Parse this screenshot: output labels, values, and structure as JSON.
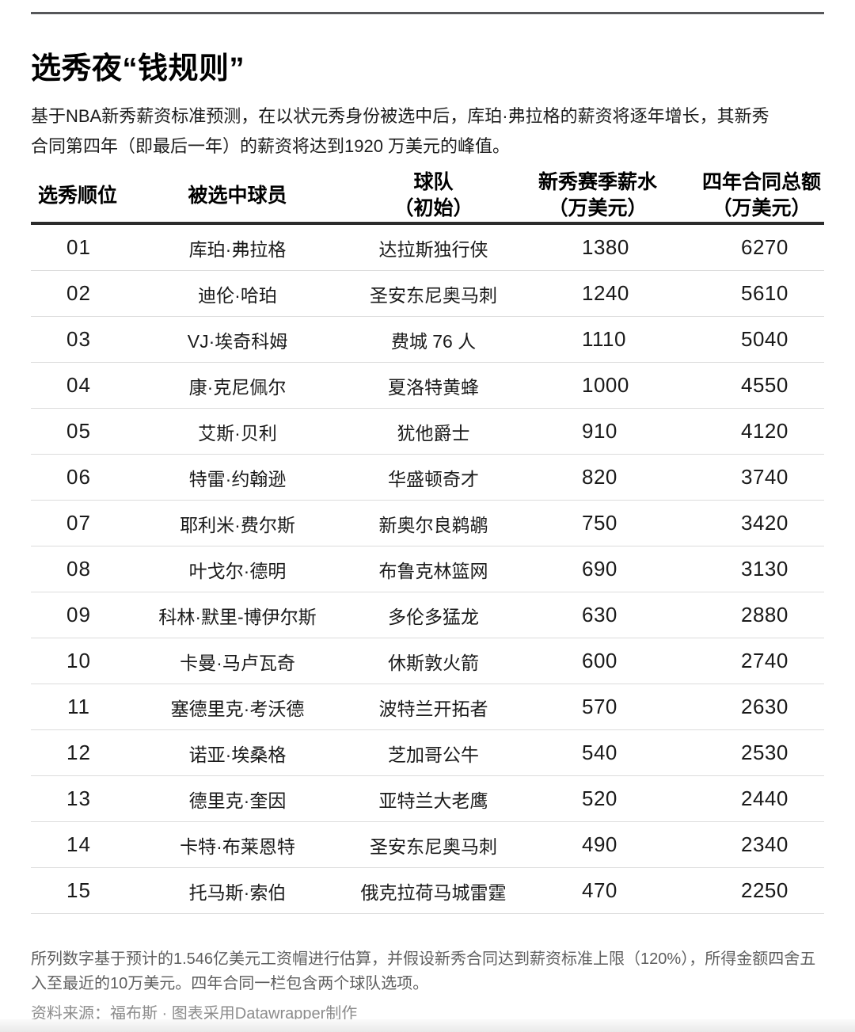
{
  "chart": {
    "title": "选秀夜“钱规则”",
    "description_lines": [
      "基于NBA新秀薪资标准预测，在以状元秀身份被选中后，库珀·弗拉格的薪资将逐年增长，其新秀",
      "合同第四年（即最后一年）的薪资将达到1920 万美元的峰值。"
    ],
    "note_lines": [
      "所列数字基于预计的1.546亿美元工资帽进行估算，并假设新秀合同达到薪资标准上限（120%），所得金额四舍五",
      "入至最近的10万美元。四年合同一栏包含两个球队选项。"
    ],
    "source": "资料来源：福布斯 · 图表采用Datawrapper制作"
  },
  "table": {
    "headers": [
      {
        "line1": "选秀顺位",
        "line2": ""
      },
      {
        "line1": "被选中球员",
        "line2": ""
      },
      {
        "line1": "球队",
        "line2": "（初始）"
      },
      {
        "line1": "新秀赛季薪水",
        "line2": "（万美元）"
      },
      {
        "line1": "四年合同总额",
        "line2": "（万美元）"
      }
    ],
    "rows": [
      {
        "pick": "01",
        "player": "库珀·弗拉格",
        "team": "达拉斯独行侠",
        "salary": "1380",
        "total": "6270"
      },
      {
        "pick": "02",
        "player": "迪伦·哈珀",
        "team": "圣安东尼奥马刺",
        "salary": "1240",
        "total": "5610"
      },
      {
        "pick": "03",
        "player": "VJ·埃奇科姆",
        "team": "费城 76 人",
        "salary": "1110",
        "total": "5040"
      },
      {
        "pick": "04",
        "player": "康·克尼佩尔",
        "team": "夏洛特黄蜂",
        "salary": "1000",
        "total": "4550"
      },
      {
        "pick": "05",
        "player": "艾斯·贝利",
        "team": "犹他爵士",
        "salary": "910",
        "total": "4120"
      },
      {
        "pick": "06",
        "player": "特雷·约翰逊",
        "team": "华盛顿奇才",
        "salary": "820",
        "total": "3740"
      },
      {
        "pick": "07",
        "player": "耶利米·费尔斯",
        "team": "新奥尔良鹈鹕",
        "salary": "750",
        "total": "3420"
      },
      {
        "pick": "08",
        "player": "叶戈尔·德明",
        "team": "布鲁克林篮网",
        "salary": "690",
        "total": "3130"
      },
      {
        "pick": "09",
        "player": "科林·默里-博伊尔斯",
        "team": "多伦多猛龙",
        "salary": "630",
        "total": "2880"
      },
      {
        "pick": "10",
        "player": "卡曼·马卢瓦奇",
        "team": "休斯敦火箭",
        "salary": "600",
        "total": "2740"
      },
      {
        "pick": "11",
        "player": "塞德里克·考沃德",
        "team": "波特兰开拓者",
        "salary": "570",
        "total": "2630"
      },
      {
        "pick": "12",
        "player": "诺亚·埃桑格",
        "team": "芝加哥公牛",
        "salary": "540",
        "total": "2530"
      },
      {
        "pick": "13",
        "player": "德里克·奎因",
        "team": "亚特兰大老鹰",
        "salary": "520",
        "total": "2440"
      },
      {
        "pick": "14",
        "player": "卡特·布莱恩特",
        "team": "圣安东尼奥马刺",
        "salary": "490",
        "total": "2340"
      },
      {
        "pick": "15",
        "player": "托马斯·索伯",
        "team": "俄克拉荷马城雷霆",
        "salary": "470",
        "total": "2250"
      }
    ]
  },
  "chart_data": {
    "type": "table",
    "title": "选秀夜“钱规则”",
    "columns": [
      "选秀顺位",
      "被选中球员",
      "球队（初始）",
      "新秀赛季薪水（万美元）",
      "四年合同总额（万美元）"
    ],
    "rows": [
      [
        "01",
        "库珀·弗拉格",
        "达拉斯独行侠",
        1380,
        6270
      ],
      [
        "02",
        "迪伦·哈珀",
        "圣安东尼奥马刺",
        1240,
        5610
      ],
      [
        "03",
        "VJ·埃奇科姆",
        "费城 76 人",
        1110,
        5040
      ],
      [
        "04",
        "康·克尼佩尔",
        "夏洛特黄蜂",
        1000,
        4550
      ],
      [
        "05",
        "艾斯·贝利",
        "犹他爵士",
        910,
        4120
      ],
      [
        "06",
        "特雷·约翰逊",
        "华盛顿奇才",
        820,
        3740
      ],
      [
        "07",
        "耶利米·费尔斯",
        "新奥尔良鹈鹕",
        750,
        3420
      ],
      [
        "08",
        "叶戈尔·德明",
        "布鲁克林篮网",
        690,
        3130
      ],
      [
        "09",
        "科林·默里-博伊尔斯",
        "多伦多猛龙",
        630,
        2880
      ],
      [
        "10",
        "卡曼·马卢瓦奇",
        "休斯敦火箭",
        600,
        2740
      ],
      [
        "11",
        "塞德里克·考沃德",
        "波特兰开拓者",
        570,
        2630
      ],
      [
        "12",
        "诺亚·埃桑格",
        "芝加哥公牛",
        540,
        2530
      ],
      [
        "13",
        "德里克·奎因",
        "亚特兰大老鹰",
        520,
        2440
      ],
      [
        "14",
        "卡特·布莱恩特",
        "圣安东尼奥马刺",
        490,
        2340
      ],
      [
        "15",
        "托马斯·索伯",
        "俄克拉荷马城雷霆",
        470,
        2250
      ]
    ]
  },
  "colors": {
    "title_text": "#000000",
    "body_text": "#1a1a1a",
    "description_text": "#1c1c1c",
    "note_text": "#5e5e5e",
    "source_text": "#8c8c8c",
    "header_rule": "#2b2b2b",
    "frame_rule": "#56575a",
    "row_divider": "#dcdcdc",
    "background": "#ffffff"
  }
}
